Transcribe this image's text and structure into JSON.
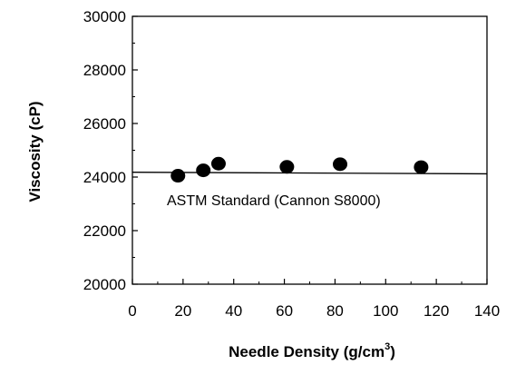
{
  "chart_data": {
    "type": "scatter",
    "xlabel": "Needle Density (g/cm",
    "xlabel_sup": "3",
    "xlabel_end": ")",
    "ylabel": "Viscosity (cP)",
    "xlim": [
      0,
      140
    ],
    "ylim": [
      20000,
      30000
    ],
    "x_ticks": [
      0,
      20,
      40,
      60,
      80,
      100,
      120,
      140
    ],
    "y_ticks": [
      20000,
      22000,
      24000,
      26000,
      28000,
      30000
    ],
    "grid": false,
    "series": [
      {
        "points": [
          {
            "x": 18,
            "y": 24050
          },
          {
            "x": 28,
            "y": 24250
          },
          {
            "x": 34,
            "y": 24500
          },
          {
            "x": 61,
            "y": 24380
          },
          {
            "x": 82,
            "y": 24480
          },
          {
            "x": 114,
            "y": 24370
          }
        ]
      }
    ],
    "reference_line": {
      "x": [
        0,
        140
      ],
      "y": [
        24180,
        24120
      ]
    },
    "annotation": "ASTM Standard (Cannon S8000)"
  }
}
